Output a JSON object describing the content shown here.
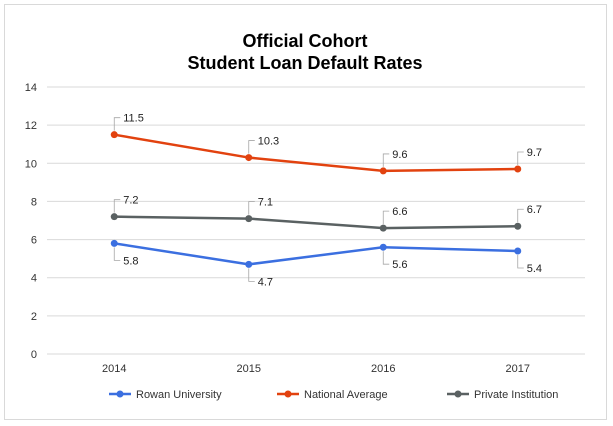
{
  "chart_data": {
    "type": "line",
    "title_lines": [
      "Official Cohort",
      "Student Loan Default Rates"
    ],
    "categories": [
      "2014",
      "2015",
      "2016",
      "2017"
    ],
    "ylim": [
      0,
      14
    ],
    "yticks": [
      "0",
      "2",
      "4",
      "6",
      "8",
      "10",
      "12",
      "14"
    ],
    "grid": true,
    "legend_position": "bottom",
    "series": [
      {
        "name": "Rowan University",
        "color": "#3b6fe0",
        "values": [
          5.8,
          4.7,
          5.6,
          5.4
        ],
        "labels": [
          "5.8",
          "4.7",
          "5.6",
          "5.4"
        ],
        "label_side": "below"
      },
      {
        "name": "National Average",
        "color": "#e2420f",
        "values": [
          11.5,
          10.3,
          9.6,
          9.7
        ],
        "labels": [
          "11.5",
          "10.3",
          "9.6",
          "9.7"
        ],
        "label_side": "above"
      },
      {
        "name": "Private Institution",
        "color": "#5a6162",
        "values": [
          7.2,
          7.1,
          6.6,
          6.7
        ],
        "labels": [
          "7.2",
          "7.1",
          "6.6",
          "6.7"
        ],
        "label_side": "above"
      }
    ]
  }
}
